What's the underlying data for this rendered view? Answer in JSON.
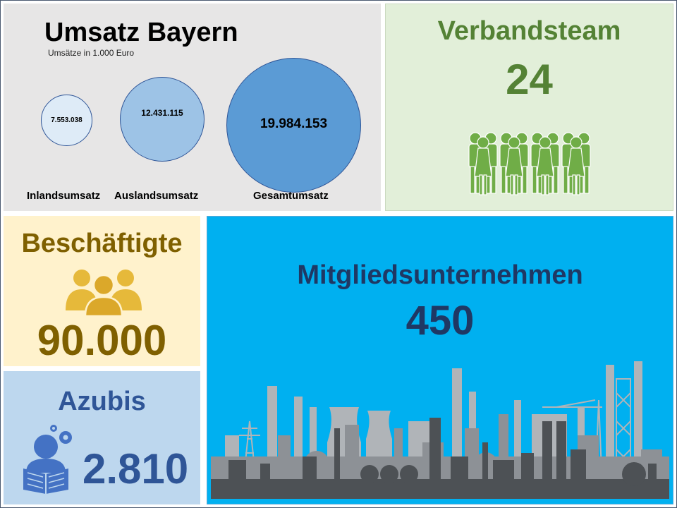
{
  "umsatz": {
    "title": "Umsatz Bayern",
    "subtitle": "Umsätze in 1.000 Euro",
    "items": [
      {
        "label": "Inlandsumsatz",
        "value": "7.553.038",
        "color": "#deebf7"
      },
      {
        "label": "Auslandsumsatz",
        "value": "12.431.115",
        "color": "#9dc3e6"
      },
      {
        "label": "Gesamtumsatz",
        "value": "19.984.153",
        "color": "#5b9bd5"
      }
    ]
  },
  "team": {
    "title": "Verbandsteam",
    "value": "24",
    "icon": "group-of-people-icon",
    "color": "#548235"
  },
  "beschaeftigte": {
    "title": "Beschäftigte",
    "value": "90.000",
    "icon": "people-icon",
    "color": "#7f6000"
  },
  "azubis": {
    "title": "Azubis",
    "value": "2.810",
    "icon": "student-reading-icon",
    "color": "#2f5597"
  },
  "mitglieder": {
    "title": "Mitgliedsunternehmen",
    "value": "450",
    "icon": "industry-skyline-icon",
    "color": "#1f3864"
  }
}
